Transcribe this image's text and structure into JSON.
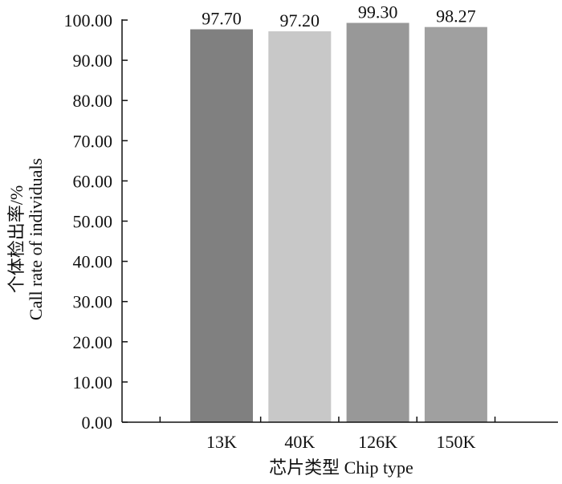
{
  "chart_data": {
    "type": "bar",
    "categories": [
      "13K",
      "40K",
      "126K",
      "150K"
    ],
    "values": [
      97.7,
      97.2,
      99.3,
      98.27
    ],
    "value_labels": [
      "97.70",
      "97.20",
      "99.30",
      "98.27"
    ],
    "colors": [
      "#808080",
      "#c8c8c8",
      "#989898",
      "#a0a0a0"
    ],
    "ylim": [
      0,
      100
    ],
    "yticks": [
      "0.00",
      "10.00",
      "20.00",
      "30.00",
      "40.00",
      "50.00",
      "60.00",
      "70.00",
      "80.00",
      "90.00",
      "100.00"
    ],
    "ylabel_line1": "个体检出率/%",
    "ylabel_line2": "Call rate of individuals",
    "xlabel": "芯片类型 Chip type",
    "grid": false,
    "legend": "none"
  }
}
